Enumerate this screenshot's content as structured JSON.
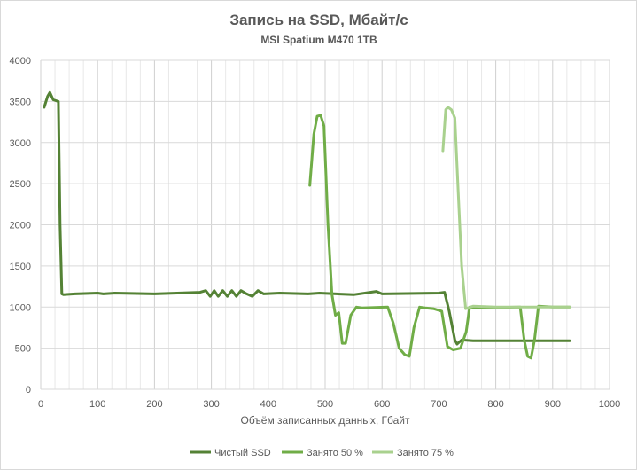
{
  "chart_data": {
    "type": "line",
    "title": "Запись на SSD, Мбайт/с",
    "subtitle": "MSI Spatium M470 1TB",
    "xlabel": "Объём записанных данных, Гбайт",
    "ylabel": "",
    "xlim": [
      0,
      1000
    ],
    "ylim": [
      0,
      4000
    ],
    "xticks": [
      0,
      100,
      200,
      300,
      400,
      500,
      600,
      700,
      800,
      900,
      1000
    ],
    "yticks": [
      0,
      500,
      1000,
      1500,
      2000,
      2500,
      3000,
      3500,
      4000
    ],
    "grid": true,
    "legend": "bottom",
    "series": [
      {
        "name": "Чистый SSD",
        "color": "#548235",
        "points": [
          [
            6,
            3430
          ],
          [
            12,
            3560
          ],
          [
            16,
            3610
          ],
          [
            22,
            3520
          ],
          [
            31,
            3500
          ],
          [
            34,
            2000
          ],
          [
            37,
            1160
          ],
          [
            40,
            1150
          ],
          [
            60,
            1160
          ],
          [
            100,
            1170
          ],
          [
            110,
            1160
          ],
          [
            130,
            1170
          ],
          [
            200,
            1160
          ],
          [
            240,
            1170
          ],
          [
            280,
            1180
          ],
          [
            290,
            1200
          ],
          [
            298,
            1130
          ],
          [
            305,
            1200
          ],
          [
            312,
            1130
          ],
          [
            320,
            1200
          ],
          [
            328,
            1130
          ],
          [
            336,
            1200
          ],
          [
            344,
            1130
          ],
          [
            352,
            1200
          ],
          [
            362,
            1160
          ],
          [
            372,
            1130
          ],
          [
            382,
            1200
          ],
          [
            392,
            1160
          ],
          [
            420,
            1170
          ],
          [
            470,
            1160
          ],
          [
            490,
            1170
          ],
          [
            520,
            1160
          ],
          [
            550,
            1150
          ],
          [
            590,
            1190
          ],
          [
            600,
            1160
          ],
          [
            700,
            1170
          ],
          [
            710,
            1180
          ],
          [
            718,
            950
          ],
          [
            728,
            600
          ],
          [
            732,
            550
          ],
          [
            740,
            600
          ],
          [
            760,
            590
          ],
          [
            800,
            590
          ],
          [
            900,
            590
          ],
          [
            930,
            590
          ]
        ]
      },
      {
        "name": "Занято 50 %",
        "color": "#70ad47",
        "points": [
          [
            473,
            2480
          ],
          [
            480,
            3100
          ],
          [
            486,
            3320
          ],
          [
            492,
            3330
          ],
          [
            498,
            3200
          ],
          [
            505,
            2000
          ],
          [
            512,
            1150
          ],
          [
            518,
            900
          ],
          [
            524,
            930
          ],
          [
            530,
            560
          ],
          [
            536,
            560
          ],
          [
            545,
            900
          ],
          [
            555,
            1000
          ],
          [
            565,
            990
          ],
          [
            610,
            1000
          ],
          [
            620,
            800
          ],
          [
            630,
            500
          ],
          [
            640,
            420
          ],
          [
            648,
            400
          ],
          [
            656,
            750
          ],
          [
            666,
            1000
          ],
          [
            676,
            990
          ],
          [
            690,
            980
          ],
          [
            705,
            950
          ],
          [
            715,
            520
          ],
          [
            725,
            480
          ],
          [
            738,
            500
          ],
          [
            748,
            700
          ],
          [
            754,
            1000
          ],
          [
            770,
            990
          ],
          [
            843,
            1000
          ],
          [
            850,
            600
          ],
          [
            856,
            400
          ],
          [
            862,
            380
          ],
          [
            868,
            600
          ],
          [
            875,
            1010
          ],
          [
            900,
            1000
          ],
          [
            930,
            1000
          ]
        ]
      },
      {
        "name": "Занято 75 %",
        "color": "#a9d18e",
        "points": [
          [
            707,
            2900
          ],
          [
            712,
            3400
          ],
          [
            716,
            3430
          ],
          [
            722,
            3400
          ],
          [
            728,
            3300
          ],
          [
            734,
            2400
          ],
          [
            740,
            1500
          ],
          [
            747,
            980
          ],
          [
            760,
            1010
          ],
          [
            800,
            1000
          ],
          [
            850,
            1000
          ],
          [
            900,
            1000
          ],
          [
            930,
            1000
          ]
        ]
      }
    ]
  }
}
